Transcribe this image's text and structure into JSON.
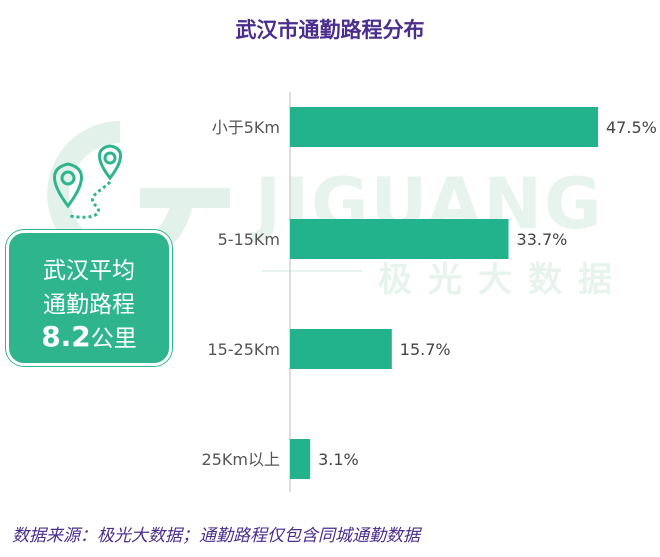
{
  "title": "武汉市通勤路程分布",
  "watermark": {
    "brand": "JIGUANG",
    "sub": "极光大数据"
  },
  "avg_box": {
    "line1": "武汉平均",
    "line2": "通勤路程",
    "value": "8.2",
    "unit": "公里"
  },
  "footer": "数据来源：极光大数据；通勤路程仅包含同城通勤数据",
  "colors": {
    "bar": "#22b38c",
    "title": "#4a2d8c",
    "label": "#555555"
  },
  "chart_data": {
    "type": "bar",
    "orientation": "horizontal",
    "title": "武汉市通勤路程分布",
    "categories": [
      "小于5Km",
      "5-15Km",
      "15-25Km",
      "25Km以上"
    ],
    "values": [
      47.5,
      33.7,
      15.7,
      3.1
    ],
    "value_labels": [
      "47.5%",
      "33.7%",
      "15.7%",
      "3.1%"
    ],
    "unit": "%",
    "grid": false,
    "legend": "none"
  }
}
